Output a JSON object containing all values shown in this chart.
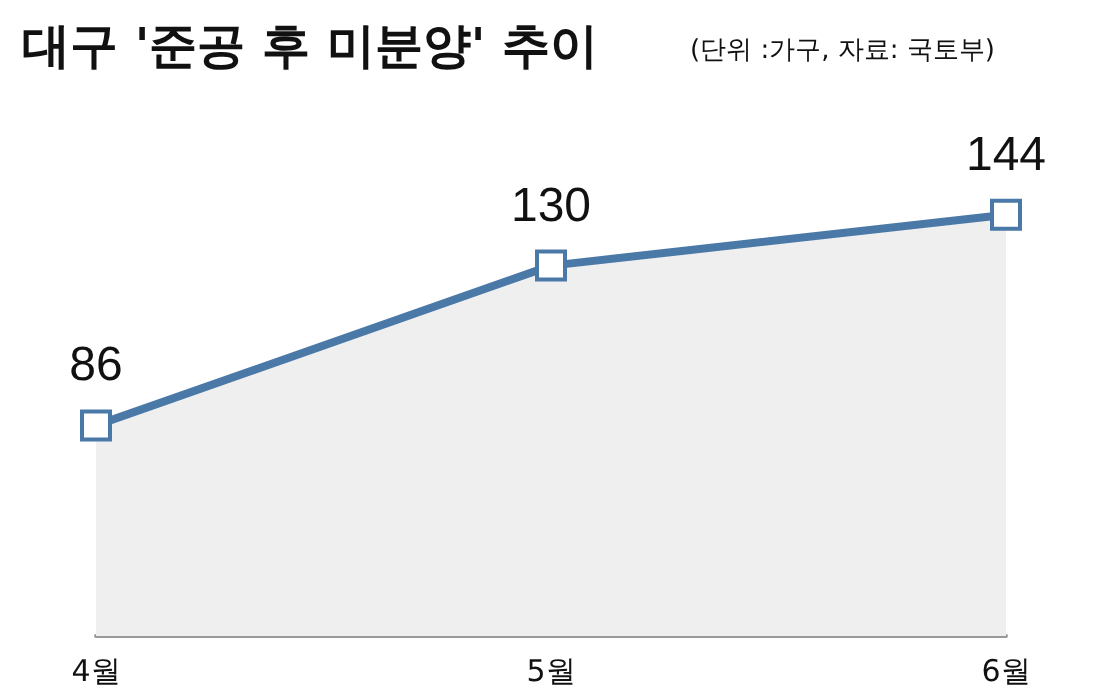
{
  "chart_data": {
    "type": "area",
    "title": "대구 '준공 후 미분양' 추이",
    "subtitle": "(단위 :가구, 자료: 국토부)",
    "categories": [
      "4월",
      "5월",
      "6월"
    ],
    "series": [
      {
        "color": "#4a79a8",
        "values": [
          86,
          130,
          144
        ]
      }
    ],
    "tick_labels": "x",
    "data_labels": true,
    "marker": "square",
    "line_style": "solid"
  }
}
